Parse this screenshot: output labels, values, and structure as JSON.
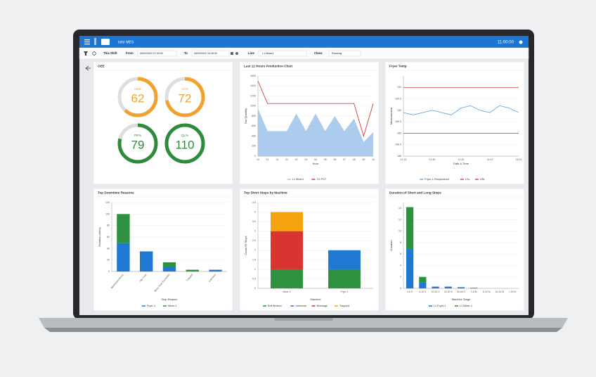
{
  "header": {
    "app": "Infor MES",
    "time": "11:00:00"
  },
  "filters": {
    "shift": "This Shift",
    "from_label": "From",
    "from": "05/02/2022 07:00:00",
    "to_label": "To",
    "to": "05/02/2022 10:45:00",
    "line_label": "Line",
    "line": "L1 Mixer1",
    "class_label": "Class",
    "class": "Running"
  },
  "chart_data": [
    {
      "type": "gauge",
      "title": "OEE",
      "categories": [
        "OEE",
        "AV%",
        "PE%",
        "QL%"
      ],
      "values": [
        62,
        72,
        79,
        110
      ],
      "colors": [
        "#f2a22c",
        "#f2a22c",
        "#2e8b3a",
        "#2e8b3a"
      ],
      "ylim": [
        0,
        100
      ]
    },
    {
      "type": "line",
      "title": "Last 12 Hours Production Chart",
      "x_label": "Hour",
      "y_label": "Out Quantity",
      "categories": [
        "10",
        "11",
        "12",
        "01",
        "02",
        "03",
        "04",
        "05",
        "06",
        "07",
        "08",
        "09",
        "10"
      ],
      "series": [
        {
          "name": "L1 Mixer1",
          "color": "#9cc3ea",
          "style": "area",
          "values": [
            950,
            500,
            500,
            500,
            850,
            500,
            850,
            500,
            800,
            500,
            750,
            280,
            480
          ]
        },
        {
          "name": "TG PST",
          "color": "#c9443f",
          "values": [
            1500,
            1050,
            1050,
            1050,
            1050,
            1050,
            1050,
            1050,
            1050,
            1050,
            1050,
            400,
            1050
          ]
        }
      ],
      "ylim": [
        0,
        1600
      ],
      "yticks": [
        0,
        200,
        400,
        600,
        800,
        1000,
        1200,
        1400,
        1600
      ],
      "grid": true
    },
    {
      "type": "line",
      "title": "Fryer Temp",
      "x_label": "Date & Time",
      "y_label": "Measurement",
      "categories": [
        "11:15",
        null,
        null,
        "11:30",
        null,
        null,
        "11:45",
        null,
        null,
        "11:47",
        null,
        null,
        "11:51"
      ],
      "series": [
        {
          "name": "Fryer-1-Temperature",
          "color": "#6fa8e0",
          "values": [
            189.9,
            189.8,
            189.9,
            190.0,
            189.9,
            189.8,
            190.1,
            190.2,
            190.0,
            189.9,
            190.2,
            190.1,
            189.9
          ]
        },
        {
          "name": "LSL",
          "color": "#d0504a",
          "values": [
            189,
            189,
            189,
            189,
            189,
            189,
            189,
            189,
            189,
            189,
            189,
            189,
            189
          ]
        },
        {
          "name": "USL",
          "color": "#d0504a",
          "values": [
            191,
            191,
            191,
            191,
            191,
            191,
            191,
            191,
            191,
            191,
            191,
            191,
            191
          ]
        }
      ],
      "ylim": [
        188,
        191.5
      ],
      "yticks": [
        188,
        188.5,
        189,
        189.5,
        190,
        190.5,
        191
      ],
      "grid": true
    },
    {
      "type": "bar",
      "title": "Top Downtime Reasons",
      "x_label": "Stop Reason",
      "y_label": "Duration (mins)",
      "stacked": true,
      "categories": [
        "Washdown/Rinse",
        "Idle Time",
        "Minor Stop Exceeded",
        "Trapped",
        "Unknown"
      ],
      "series": [
        {
          "name": "Fryer-1",
          "color": "#1f78d1",
          "values": [
            50,
            35,
            8,
            0,
            3
          ]
        },
        {
          "name": "Mixer-1",
          "color": "#2e9140",
          "values": [
            50,
            0,
            8,
            3,
            0
          ]
        }
      ],
      "ylim": [
        0,
        120
      ],
      "yticks": [
        0,
        20,
        40,
        60,
        80,
        100,
        120
      ],
      "grid": true
    },
    {
      "type": "bar",
      "title": "Top Short Stops by Machine",
      "x_label": "Machine",
      "y_label": "Count Of Stops",
      "stacked": true,
      "categories": [
        "Mixer-1",
        "Fryer-1"
      ],
      "series": [
        {
          "name": "Belt Broken",
          "color": "#2e9140",
          "values": [
            1,
            1
          ]
        },
        {
          "name": "Unknown",
          "color": "#1f78d1",
          "values": [
            0,
            1
          ]
        },
        {
          "name": "Blockage",
          "color": "#d93430",
          "values": [
            2,
            0
          ]
        },
        {
          "name": "Trapped",
          "color": "#f5a20f",
          "values": [
            1,
            0
          ]
        }
      ],
      "ylim": [
        0,
        4.5
      ],
      "yticks": [
        0,
        0.5,
        1,
        1.5,
        2,
        2.5,
        3,
        3.5,
        4,
        4.5
      ],
      "grid": true
    },
    {
      "type": "bar",
      "title": "Duration of Short and Long Stops",
      "x_label": "Machine Stage",
      "y_label": "Duration",
      "stacked": true,
      "categories": [
        "4-6 S",
        "6-10 S",
        "10-20 S",
        "20-30 S",
        "30-60 S",
        "1-5 M",
        "5-10 M",
        "10-20 M",
        "> 20 M"
      ],
      "series": [
        {
          "name": "L1 Fryer-1",
          "color": "#1f78d1",
          "values": [
            7,
            1,
            0.3,
            0.3,
            0.2,
            0.1,
            0,
            0,
            0
          ]
        },
        {
          "name": "L1 Mixer-1",
          "color": "#2e9140",
          "values": [
            7.2,
            1,
            0,
            0,
            0,
            0,
            0,
            0,
            0
          ]
        }
      ],
      "ylim": [
        0,
        15
      ],
      "yticks": [
        0,
        2,
        4,
        6,
        8,
        10,
        12,
        14
      ],
      "grid": true
    }
  ]
}
